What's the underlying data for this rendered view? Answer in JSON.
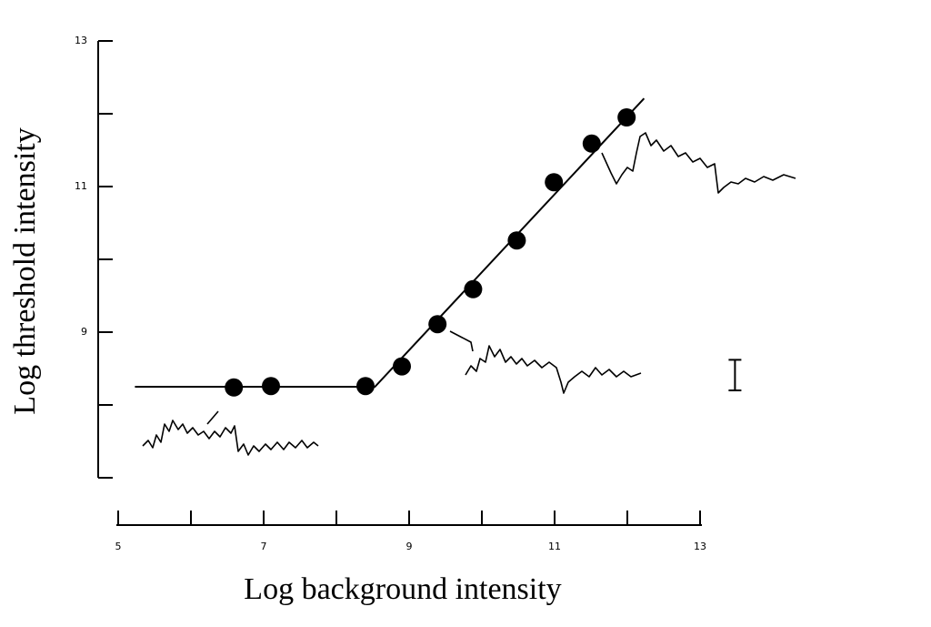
{
  "chart_data": {
    "type": "scatter",
    "x_label": "Log background intensity",
    "y_label": "Log threshold intensity",
    "x": [
      6.59,
      7.1,
      8.4,
      8.9,
      9.39,
      9.88,
      10.48,
      10.99,
      11.51,
      11.99
    ],
    "values": [
      8.24,
      8.26,
      8.26,
      8.53,
      9.11,
      9.59,
      10.26,
      11.06,
      11.59,
      11.95
    ],
    "color": "#000000",
    "fit": {
      "x": [
        5.23,
        8.53,
        12.23
      ],
      "y": [
        8.25,
        8.25,
        12.21
      ]
    },
    "error_bar": {
      "x": 13.48,
      "y": 8.41,
      "err": 0.21
    },
    "xlim": [
      5,
      13
    ],
    "xticks": [
      5,
      7,
      9,
      11,
      13
    ],
    "xminorticks": [
      6,
      8,
      10,
      12
    ],
    "ylim": [
      7,
      13
    ],
    "yticks": [
      9,
      11,
      13
    ],
    "yminorticks": [
      7,
      8,
      10,
      12
    ]
  }
}
